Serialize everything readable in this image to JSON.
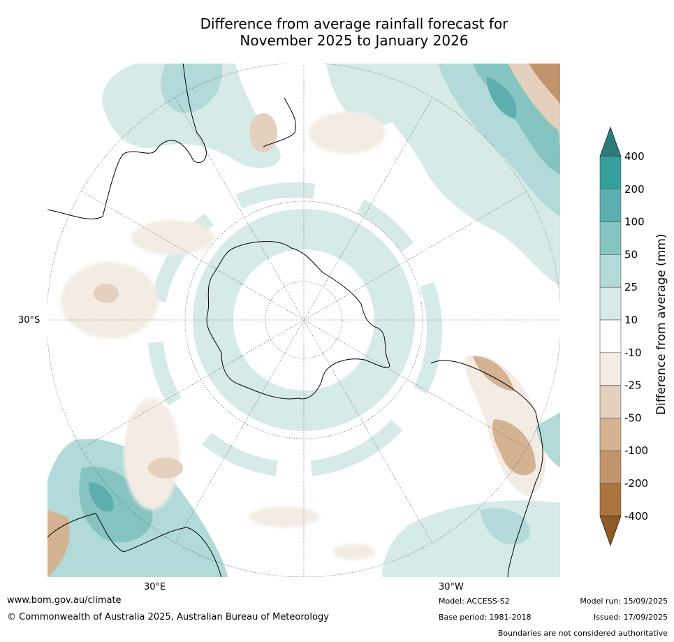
{
  "title_line1": "Difference from average rainfall forecast for",
  "title_line2": "November 2025 to January 2026",
  "map": {
    "lat_label": "30°S",
    "lon_label_east": "30°E",
    "lon_label_west": "30°W"
  },
  "colorbar": {
    "title": "Difference from average (mm)",
    "ticks": [
      "400",
      "200",
      "100",
      "50",
      "25",
      "10",
      "-10",
      "-25",
      "-50",
      "-100",
      "-200",
      "-400"
    ],
    "colors": [
      "#2a7c7a",
      "#35a09b",
      "#5dafaf",
      "#86c4c2",
      "#b1dad8",
      "#d6eae8",
      "#ffffff",
      "#f3ece5",
      "#e3d0bd",
      "#d4b393",
      "#c1946b",
      "#ad733f",
      "#8e5a26"
    ]
  },
  "footer": {
    "url": "www.bom.gov.au/climate",
    "copyright": "© Commonwealth of Australia 2025, Australian Bureau of Meteorology",
    "model": "Model: ACCESS-S2",
    "base_period": "Base period: 1981-2018",
    "model_run": "Model run: 15/09/2025",
    "issued": "Issued: 17/09/2025",
    "disclaimer": "Boundaries are not considered authoritative"
  }
}
